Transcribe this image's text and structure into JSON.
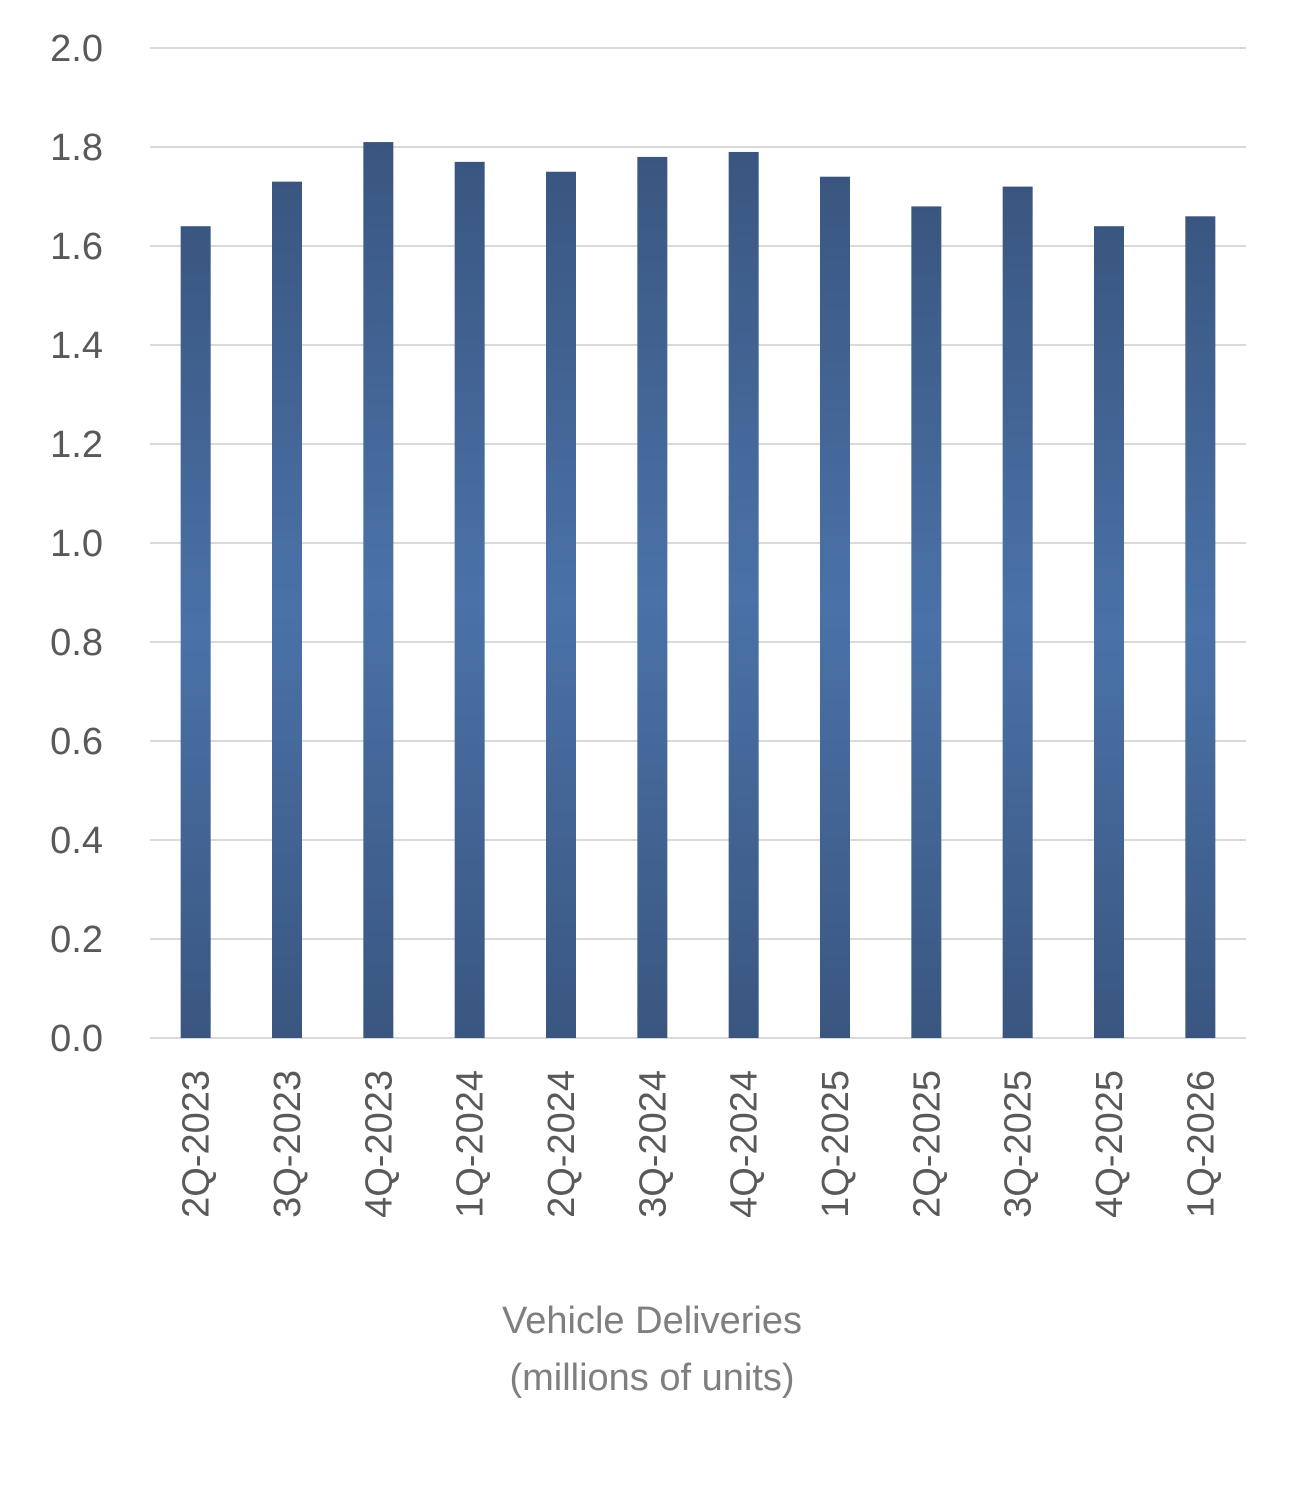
{
  "chart_data": {
    "type": "bar",
    "title": "",
    "xlabel": "Vehicle Deliveries\n(millions of units)",
    "xlabel_lines": [
      "Vehicle Deliveries",
      "(millions of units)"
    ],
    "ylabel": "",
    "ylim": [
      0,
      2.0
    ],
    "yticks": [
      "0.0",
      "0.2",
      "0.4",
      "0.6",
      "0.8",
      "1.0",
      "1.2",
      "1.4",
      "1.6",
      "1.8",
      "2.0"
    ],
    "categories": [
      "2Q-2023",
      "3Q-2023",
      "4Q-2023",
      "1Q-2024",
      "2Q-2024",
      "3Q-2024",
      "4Q-2024",
      "1Q-2025",
      "2Q-2025",
      "3Q-2025",
      "4Q-2025",
      "1Q-2026"
    ],
    "values": [
      1.64,
      1.73,
      1.81,
      1.77,
      1.75,
      1.78,
      1.79,
      1.74,
      1.68,
      1.72,
      1.64,
      1.66
    ],
    "grid": true,
    "legend": "none",
    "bar_color_dark": "#3a5680",
    "bar_color_light": "#4a72a8",
    "grid_color": "#d9d9d9"
  }
}
